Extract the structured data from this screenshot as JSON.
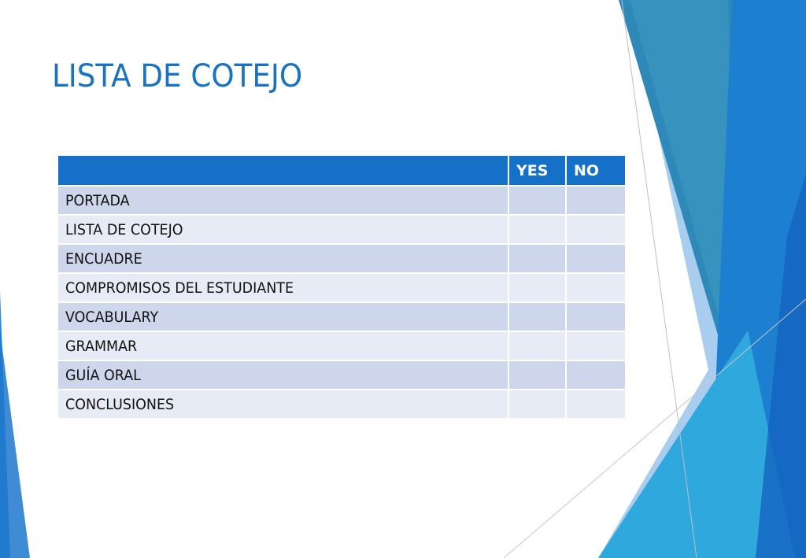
{
  "slide": {
    "title": "LISTA DE COTEJO"
  },
  "table": {
    "headers": [
      "",
      "YES",
      "NO"
    ],
    "rows": [
      {
        "item": "PORTADA",
        "yes": "",
        "no": ""
      },
      {
        "item": "LISTA DE COTEJO",
        "yes": "",
        "no": ""
      },
      {
        "item": "ENCUADRE",
        "yes": "",
        "no": ""
      },
      {
        "item": "COMPROMISOS DEL ESTUDIANTE",
        "yes": "",
        "no": ""
      },
      {
        "item": "VOCABULARY",
        "yes": "",
        "no": ""
      },
      {
        "item": "GRAMMAR",
        "yes": "",
        "no": ""
      },
      {
        "item": "GUÍA ORAL",
        "yes": "",
        "no": ""
      },
      {
        "item": "CONCLUSIONES",
        "yes": "",
        "no": ""
      }
    ]
  },
  "colors": {
    "title": "#1a73c2",
    "header_fill": "#1570c8",
    "row_dark": "#cdd6ea",
    "row_light": "#e7ebf5",
    "accent_teal": "#2e88b8",
    "accent_blue": "#1d7fd0",
    "accent_light": "#a9cdee"
  }
}
